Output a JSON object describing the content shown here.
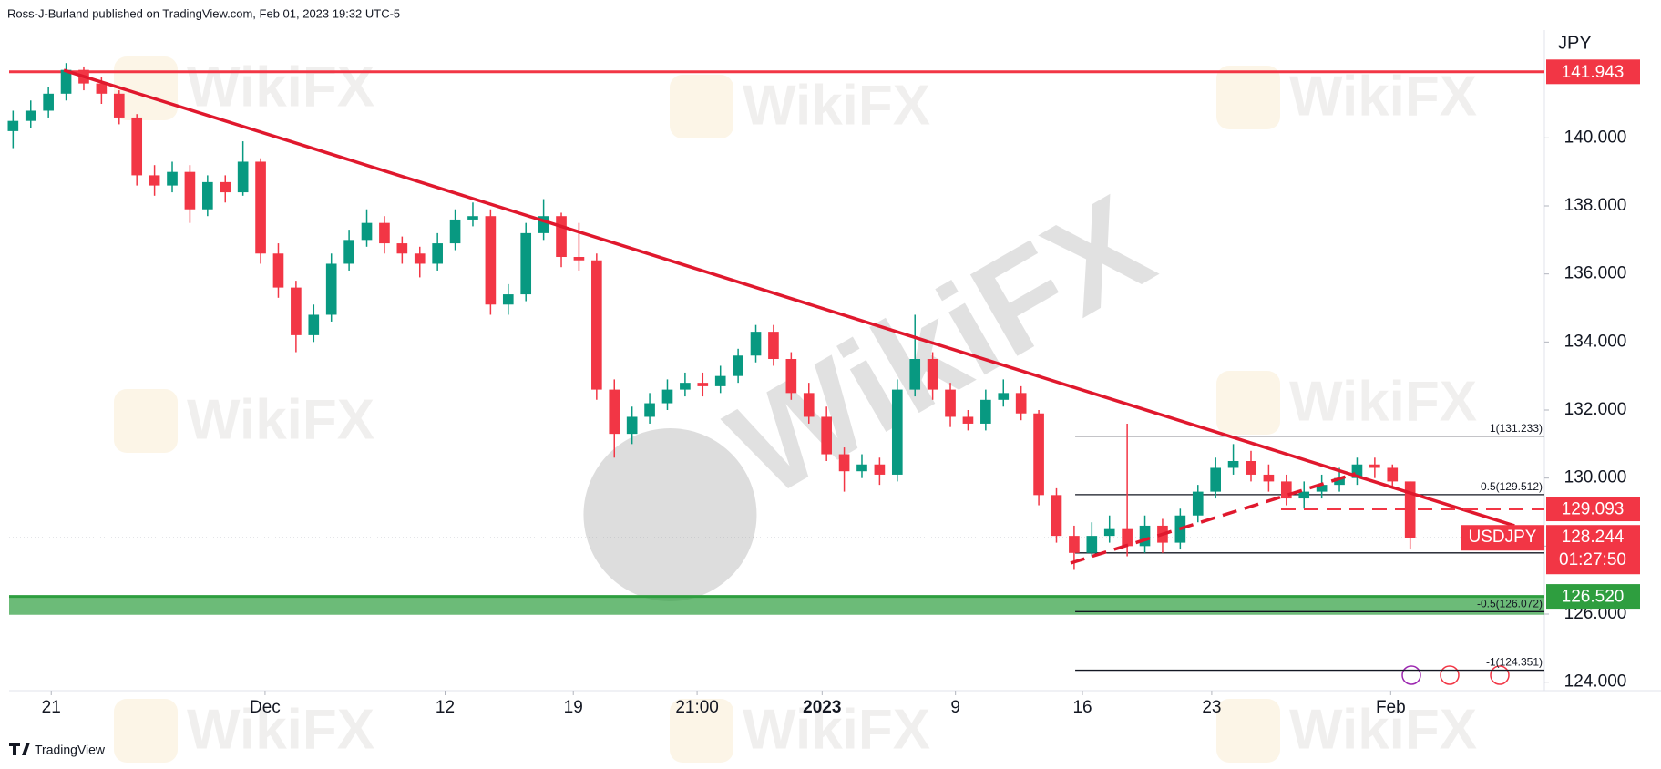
{
  "header": {
    "byline": "Ross-J-Burland published on TradingView.com, Feb 01, 2023 19:32 UTC-5"
  },
  "footer": {
    "brand": "TradingView"
  },
  "watermark": "WikiFX",
  "chart_data": {
    "type": "candlestick",
    "symbol": "USDJPY",
    "currency": "JPY",
    "countdown": "01:27:50",
    "up_color": "#089981",
    "down_color": "#f23645",
    "open": [
      140.2,
      140.5,
      140.8,
      141.3,
      142.0,
      141.6,
      141.3,
      140.6,
      138.9,
      138.6,
      139.0,
      137.9,
      138.7,
      138.4,
      139.3,
      136.6,
      135.6,
      134.2,
      134.8,
      136.3,
      137.0,
      137.5,
      136.9,
      136.6,
      136.3,
      136.9,
      137.6,
      137.7,
      135.1,
      135.4,
      137.2,
      137.7,
      136.5,
      136.4,
      132.6,
      131.3,
      131.8,
      132.2,
      132.6,
      132.8,
      132.7,
      133.0,
      133.6,
      134.3,
      133.5,
      132.5,
      131.8,
      130.7,
      130.2,
      130.4,
      130.1,
      132.6,
      133.5,
      132.6,
      131.8,
      131.6,
      132.3,
      132.5,
      131.9,
      129.5,
      128.3,
      127.8,
      128.3,
      128.5,
      128.0,
      128.6,
      128.1,
      128.9,
      129.6,
      130.3,
      130.5,
      130.1,
      129.9,
      129.4,
      129.6,
      129.8,
      130.0,
      130.4,
      130.3,
      129.9
    ],
    "high": [
      140.8,
      141.1,
      141.5,
      142.2,
      142.1,
      141.8,
      141.4,
      140.7,
      139.2,
      139.3,
      139.2,
      138.9,
      138.9,
      139.9,
      139.4,
      136.9,
      135.8,
      135.1,
      136.6,
      137.3,
      137.9,
      137.7,
      137.1,
      136.8,
      137.2,
      137.9,
      138.1,
      137.9,
      135.7,
      137.5,
      138.2,
      137.8,
      137.5,
      136.6,
      132.9,
      132.1,
      132.5,
      132.9,
      133.1,
      133.1,
      133.3,
      133.8,
      134.5,
      134.5,
      133.7,
      132.8,
      132.1,
      130.9,
      130.7,
      130.6,
      132.9,
      134.8,
      133.7,
      132.8,
      132.0,
      132.6,
      132.9,
      132.7,
      132.0,
      129.7,
      128.6,
      128.7,
      128.9,
      131.6,
      128.9,
      128.8,
      129.1,
      129.8,
      130.6,
      131.0,
      130.8,
      130.4,
      130.1,
      129.9,
      130.1,
      130.3,
      130.6,
      130.6,
      130.4,
      129.9
    ],
    "low": [
      139.7,
      140.3,
      140.6,
      141.1,
      141.4,
      141.0,
      140.4,
      138.6,
      138.3,
      138.4,
      137.5,
      137.7,
      138.1,
      138.3,
      136.3,
      135.3,
      133.7,
      134.0,
      134.6,
      136.1,
      136.8,
      136.6,
      136.3,
      135.9,
      136.1,
      136.7,
      137.4,
      134.8,
      134.8,
      135.2,
      137.0,
      136.2,
      136.1,
      132.3,
      130.6,
      131.0,
      131.6,
      132.0,
      132.4,
      132.4,
      132.5,
      132.8,
      133.4,
      133.3,
      132.3,
      131.6,
      130.5,
      129.6,
      130.0,
      129.8,
      129.9,
      132.4,
      132.3,
      131.5,
      131.4,
      131.4,
      132.1,
      131.7,
      129.2,
      128.1,
      127.3,
      127.7,
      128.1,
      127.7,
      127.8,
      127.8,
      127.9,
      128.7,
      129.4,
      130.1,
      129.9,
      129.6,
      129.2,
      129.1,
      129.4,
      129.6,
      129.8,
      130.0,
      129.7,
      127.9
    ],
    "close": [
      140.5,
      140.8,
      141.3,
      142.0,
      141.6,
      141.3,
      140.6,
      138.9,
      138.6,
      139.0,
      137.9,
      138.7,
      138.4,
      139.3,
      136.6,
      135.6,
      134.2,
      134.8,
      136.3,
      137.0,
      137.5,
      136.9,
      136.6,
      136.3,
      136.9,
      137.6,
      137.7,
      135.1,
      135.4,
      137.2,
      137.7,
      136.5,
      136.4,
      132.6,
      131.3,
      131.8,
      132.2,
      132.6,
      132.8,
      132.7,
      133.0,
      133.6,
      134.3,
      133.5,
      132.5,
      131.8,
      130.7,
      130.2,
      130.4,
      130.1,
      132.6,
      133.5,
      132.6,
      131.8,
      131.6,
      132.3,
      132.5,
      131.9,
      129.5,
      128.3,
      127.8,
      128.3,
      128.5,
      128.0,
      128.6,
      128.1,
      128.9,
      129.6,
      130.3,
      130.5,
      130.1,
      129.9,
      129.4,
      129.6,
      129.8,
      130.0,
      130.4,
      130.3,
      129.9,
      128.244
    ],
    "xlim": [
      -0.12,
      86.59
    ],
    "xticks": [
      {
        "value": 2.16,
        "label": "21"
      },
      {
        "value": 14.25,
        "label": "Dec"
      },
      {
        "value": 24.43,
        "label": "12"
      },
      {
        "value": 31.68,
        "label": "19"
      },
      {
        "value": 38.68,
        "label": "21:00"
      },
      {
        "value": 45.75,
        "label": "2023",
        "bold": true
      },
      {
        "value": 53.29,
        "label": "9"
      },
      {
        "value": 60.47,
        "label": "16"
      },
      {
        "value": 67.78,
        "label": "23"
      },
      {
        "value": 77.9,
        "label": "Feb"
      }
    ],
    "ylim": [
      123.75,
      143.17
    ],
    "yticks": [
      {
        "value": 124,
        "label": "124.000"
      },
      {
        "value": 126,
        "label": "126.000"
      },
      {
        "value": 128,
        "label": "128.000"
      },
      {
        "value": 130,
        "label": "130.000"
      },
      {
        "value": 132,
        "label": "132.000"
      },
      {
        "value": 134,
        "label": "134.000"
      },
      {
        "value": 136,
        "label": "136.000"
      },
      {
        "value": 138,
        "label": "138.000"
      },
      {
        "value": 140,
        "label": "140.000"
      }
    ],
    "levels": [
      {
        "value": 141.943,
        "color": "#f23645"
      },
      {
        "value": 126.52,
        "label": "126.520",
        "color": "#2e9e3f",
        "zone_to": 125.98
      }
    ],
    "dashed_level": {
      "value": 129.093,
      "from": 71.7,
      "color": "#f23645"
    },
    "trendlines": [
      {
        "x": [
          2.87,
          84.9
        ],
        "y": [
          141.99,
          128.6
        ],
        "color": "#e0182d",
        "dash": false
      },
      {
        "x": [
          59.8,
          75.9
        ],
        "y": [
          127.5,
          130.13
        ],
        "color": "#e0182d",
        "dash": true
      }
    ],
    "fib": {
      "from": 60.06,
      "levels": [
        {
          "value": 131.233,
          "label": "1(131.233)"
        },
        {
          "value": 129.512,
          "label": "0.5(129.512)"
        },
        {
          "value": 127.8
        },
        {
          "value": 126.072,
          "label": "-0.5(126.072)"
        },
        {
          "value": 124.351,
          "label": "-1(124.351)"
        }
      ]
    }
  }
}
